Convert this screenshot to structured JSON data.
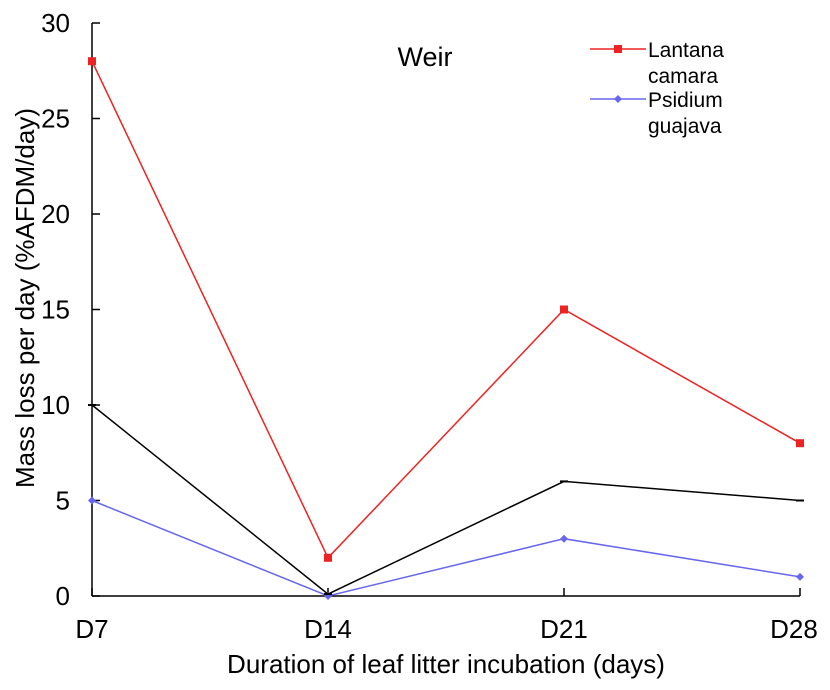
{
  "chart_data": {
    "type": "line",
    "title": "Weir",
    "xlabel": "Duration of leaf litter incubation (days)",
    "ylabel": "Mass loss per day (%AFDM/day)",
    "categories": [
      "D7",
      "D14",
      "D21",
      "D28"
    ],
    "ylim": [
      0,
      30
    ],
    "yticks": [
      "0",
      "5",
      "10",
      "15",
      "20",
      "25",
      "30"
    ],
    "grid": false,
    "legend_position": "top-right",
    "series": [
      {
        "name": "Lantana camara",
        "legend_lines": [
          "Lantana",
          "camara"
        ],
        "values": [
          28,
          2,
          15,
          8
        ],
        "color": "#ee2222",
        "marker": "square"
      },
      {
        "name": "Psidium guajava",
        "legend_lines": [
          "Psidium",
          "guajava"
        ],
        "values": [
          5,
          0,
          3,
          1
        ],
        "color": "#6666ee",
        "marker": "diamond"
      },
      {
        "name": "",
        "values": [
          10,
          0.1,
          6,
          5
        ],
        "color": "#000000",
        "marker": "dash"
      }
    ]
  }
}
